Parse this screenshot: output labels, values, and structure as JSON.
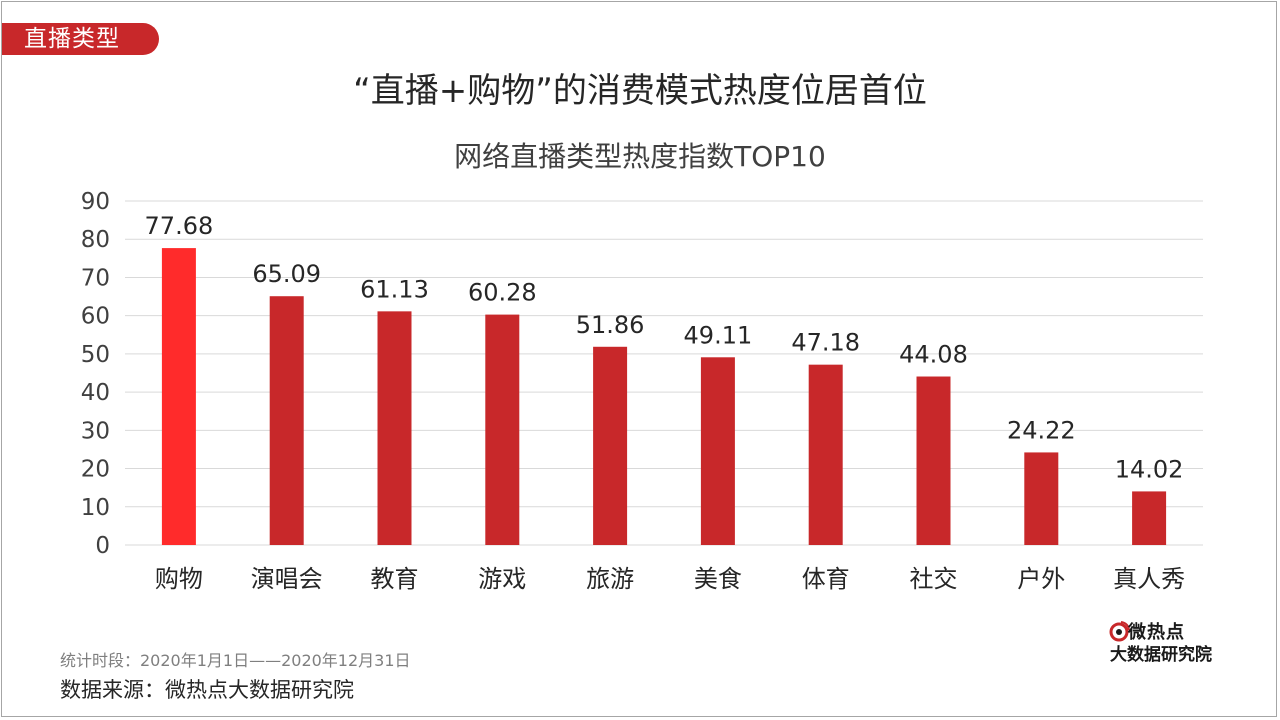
{
  "section_tag": "直播类型",
  "headline": "“直播+购物”的消费模式热度位居首位",
  "footnote": {
    "period": "统计时段：2020年1月1日——2020年12月31日",
    "source": "数据来源：微热点大数据研究院"
  },
  "logo": {
    "line1": "微热点",
    "line2": "大数据研究院"
  },
  "colors": {
    "highlight_bar": "#ff2b2b",
    "bar": "#c8282a",
    "tag_background": "#c8282a"
  },
  "chart_data": {
    "type": "bar",
    "title": "网络直播类型热度指数TOP10",
    "xlabel": "",
    "ylabel": "",
    "categories": [
      "购物",
      "演唱会",
      "教育",
      "游戏",
      "旅游",
      "美食",
      "体育",
      "社交",
      "户外",
      "真人秀"
    ],
    "values": [
      77.68,
      65.09,
      61.13,
      60.28,
      51.86,
      49.11,
      47.18,
      44.08,
      24.22,
      14.02
    ],
    "value_labels": [
      "77.68",
      "65.09",
      "61.13",
      "60.28",
      "51.86",
      "49.11",
      "47.18",
      "44.08",
      "24.22",
      "14.02"
    ],
    "ylim": [
      0,
      90
    ],
    "yticks": [
      "0",
      "10",
      "20",
      "30",
      "40",
      "50",
      "60",
      "70",
      "80",
      "90"
    ],
    "grid": true,
    "legend": "none",
    "highlighted_category": "购物"
  }
}
